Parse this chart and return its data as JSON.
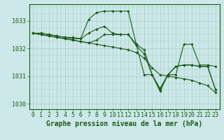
{
  "background_color": "#cce8e8",
  "grid_color": "#aacccc",
  "line_color": "#1a5c1a",
  "xlabel": "Graphe pression niveau de la mer (hPa)",
  "xlabel_fontsize": 7,
  "tick_fontsize": 6,
  "ylim": [
    1029.8,
    1033.6
  ],
  "xlim": [
    -0.5,
    23.5
  ],
  "yticks": [
    1030,
    1031,
    1032,
    1033
  ],
  "xticks": [
    0,
    1,
    2,
    3,
    4,
    5,
    6,
    7,
    8,
    9,
    10,
    11,
    12,
    13,
    14,
    15,
    16,
    17,
    18,
    19,
    20,
    21,
    22,
    23
  ],
  "series": [
    {
      "x": [
        0,
        1,
        2,
        3,
        4,
        5,
        6,
        7,
        8,
        9,
        10,
        11,
        12,
        13,
        14,
        15,
        16,
        17,
        18,
        19,
        20,
        21,
        22,
        23
      ],
      "y": [
        1032.55,
        1032.55,
        1032.5,
        1032.45,
        1032.4,
        1032.4,
        1032.35,
        1033.05,
        1033.3,
        1033.35,
        1033.35,
        1033.35,
        1033.35,
        1032.15,
        1031.05,
        1031.05,
        1030.55,
        1031.05,
        1031.35,
        1031.4,
        1031.4,
        1031.35,
        1031.35,
        1030.5
      ]
    },
    {
      "x": [
        0,
        1,
        2,
        3,
        4,
        5,
        6,
        7,
        8,
        9,
        10,
        11,
        12,
        13,
        14,
        15,
        16,
        17,
        18,
        19,
        20,
        21,
        22,
        23
      ],
      "y": [
        1032.55,
        1032.55,
        1032.5,
        1032.45,
        1032.4,
        1032.35,
        1032.35,
        1032.55,
        1032.7,
        1032.8,
        1032.55,
        1032.5,
        1032.5,
        1032.15,
        1031.95,
        1031.05,
        1030.45,
        1031.05,
        1031.05,
        1032.15,
        1032.15,
        1031.4,
        1031.4,
        1031.35
      ]
    },
    {
      "x": [
        0,
        1,
        2,
        3,
        4,
        5,
        6,
        7,
        8,
        9,
        10,
        11,
        12,
        13,
        14,
        15,
        16,
        17,
        18,
        19,
        20,
        21,
        22,
        23
      ],
      "y": [
        1032.55,
        1032.5,
        1032.45,
        1032.4,
        1032.35,
        1032.3,
        1032.25,
        1032.2,
        1032.15,
        1032.1,
        1032.05,
        1032.0,
        1031.95,
        1031.85,
        1031.65,
        1031.3,
        1031.05,
        1031.0,
        1030.95,
        1030.9,
        1030.85,
        1030.75,
        1030.65,
        1030.4
      ]
    },
    {
      "x": [
        0,
        1,
        2,
        3,
        4,
        5,
        6,
        7,
        8,
        9,
        10,
        11,
        12,
        13,
        14,
        15,
        16,
        17,
        18,
        19,
        20,
        21,
        22,
        23
      ],
      "y": [
        1032.55,
        1032.5,
        1032.45,
        1032.4,
        1032.35,
        1032.3,
        1032.25,
        1032.2,
        1032.3,
        1032.5,
        1032.5,
        1032.5,
        1032.5,
        1032.1,
        1031.8,
        1031.05,
        1030.5,
        1031.05,
        1031.35,
        1031.4,
        1031.4,
        1031.35,
        1031.35,
        1030.5
      ]
    }
  ]
}
